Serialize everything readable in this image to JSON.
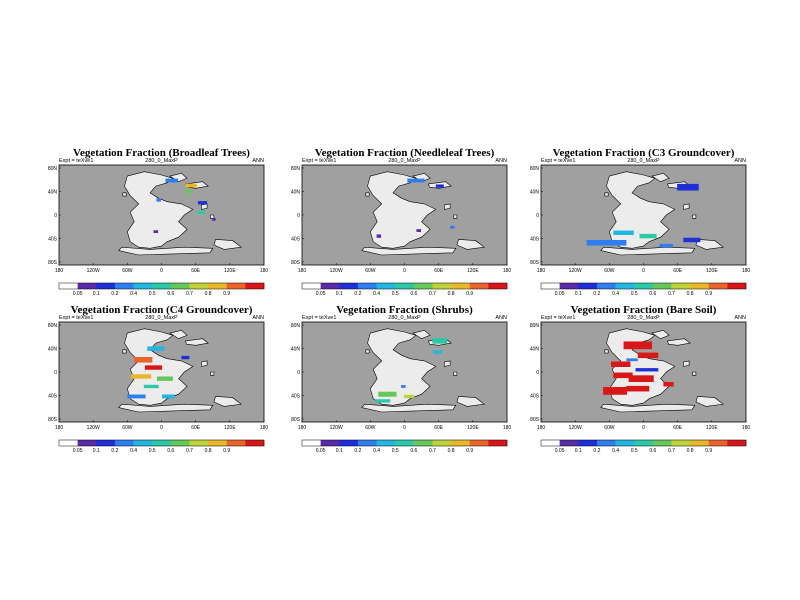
{
  "colors": {
    "ocean": "#a0a0a0",
    "land": "#ececec",
    "frame": "#000000"
  },
  "colorbar": {
    "colors": [
      "#ffffff",
      "#5b2aa8",
      "#1f2fd8",
      "#2f7ef0",
      "#22b6e0",
      "#2cc8a8",
      "#66c85a",
      "#c0d23a",
      "#e8b82a",
      "#e8642a",
      "#d81818"
    ]
  },
  "chart_data": [
    {
      "type": "heatmap",
      "title": "Vegetation Fraction (Broadleaf Trees)",
      "subtitle": "280_0_MaxP",
      "expt": "Expt = teXve1",
      "period": "ANN",
      "lat_ticks": [
        "80N",
        "40N",
        "0",
        "40S",
        "80S"
      ],
      "lon_ticks": [
        "180",
        "120W",
        "60W",
        "0",
        "60E",
        "120E",
        "180"
      ],
      "colorbar_ticks": [
        "0.05",
        "0.1",
        "0.2",
        "0.4",
        "0.5",
        "0.6",
        "0.7",
        "0.8",
        "0.9"
      ],
      "patches": [
        {
          "lon": -5,
          "lat": 27,
          "w": 8,
          "h": 6,
          "c": "#2f7ef0"
        },
        {
          "lon": 18,
          "lat": 62,
          "w": 22,
          "h": 7,
          "c": "#2f7ef0"
        },
        {
          "lon": 52,
          "lat": 53,
          "w": 20,
          "h": 7,
          "c": "#e8b82a"
        },
        {
          "lon": 48,
          "lat": 42,
          "w": 14,
          "h": 6,
          "c": "#66c85a"
        },
        {
          "lon": 72,
          "lat": 22,
          "w": 16,
          "h": 6,
          "c": "#1f2fd8"
        },
        {
          "lon": 70,
          "lat": 5,
          "w": 14,
          "h": 6,
          "c": "#2cc8a8"
        },
        {
          "lon": -10,
          "lat": -30,
          "w": 8,
          "h": 5,
          "c": "#5b2aa8"
        },
        {
          "lon": 92,
          "lat": -8,
          "w": 6,
          "h": 5,
          "c": "#5b2aa8"
        }
      ]
    },
    {
      "type": "heatmap",
      "title": "Vegetation Fraction (Needleleaf Trees)",
      "subtitle": "280_0_MaxP",
      "expt": "Expt = teXve1",
      "period": "ANN",
      "lat_ticks": [
        "80N",
        "40N",
        "0",
        "40S",
        "80S"
      ],
      "lon_ticks": [
        "180",
        "120W",
        "60W",
        "0",
        "60E",
        "120E",
        "180"
      ],
      "colorbar_ticks": [
        "0.05",
        "0.1",
        "0.2",
        "0.4",
        "0.5",
        "0.6",
        "0.7",
        "0.8",
        "0.9"
      ],
      "patches": [
        {
          "lon": 20,
          "lat": 62,
          "w": 30,
          "h": 7,
          "c": "#2f7ef0"
        },
        {
          "lon": 62,
          "lat": 52,
          "w": 14,
          "h": 6,
          "c": "#1f2fd8"
        },
        {
          "lon": -45,
          "lat": -38,
          "w": 8,
          "h": 6,
          "c": "#5b2aa8"
        },
        {
          "lon": 25,
          "lat": -28,
          "w": 8,
          "h": 5,
          "c": "#5b2aa8"
        },
        {
          "lon": 84,
          "lat": -22,
          "w": 8,
          "h": 5,
          "c": "#2f7ef0"
        }
      ]
    },
    {
      "type": "heatmap",
      "title": "Vegetation Fraction (C3 Groundcover)",
      "subtitle": "280_0_MaxP",
      "expt": "Expt = teXve1",
      "period": "ANN",
      "lat_ticks": [
        "80N",
        "40N",
        "0",
        "40S",
        "80S"
      ],
      "lon_ticks": [
        "180",
        "120W",
        "60W",
        "0",
        "60E",
        "120E",
        "180"
      ],
      "colorbar_ticks": [
        "0.05",
        "0.1",
        "0.2",
        "0.4",
        "0.5",
        "0.6",
        "0.7",
        "0.8",
        "0.9"
      ],
      "patches": [
        {
          "lon": 78,
          "lat": 50,
          "w": 38,
          "h": 12,
          "c": "#1f2fd8"
        },
        {
          "lon": -65,
          "lat": -50,
          "w": 70,
          "h": 10,
          "c": "#2f7ef0"
        },
        {
          "lon": -35,
          "lat": -32,
          "w": 36,
          "h": 8,
          "c": "#22b6e0"
        },
        {
          "lon": 8,
          "lat": -38,
          "w": 30,
          "h": 8,
          "c": "#2cc8a8"
        },
        {
          "lon": 40,
          "lat": -55,
          "w": 24,
          "h": 6,
          "c": "#2f7ef0"
        },
        {
          "lon": 85,
          "lat": -45,
          "w": 30,
          "h": 8,
          "c": "#1f2fd8"
        }
      ]
    },
    {
      "type": "heatmap",
      "title": "Vegetation Fraction (C4 Groundcover)",
      "subtitle": "280_0_MaxP",
      "expt": "Expt = teXve1",
      "period": "ANN",
      "lat_ticks": [
        "80N",
        "40N",
        "0",
        "40S",
        "80S"
      ],
      "lon_ticks": [
        "180",
        "120W",
        "60W",
        "0",
        "60E",
        "120E",
        "180"
      ],
      "colorbar_ticks": [
        "0.05",
        "0.1",
        "0.2",
        "0.4",
        "0.5",
        "0.6",
        "0.7",
        "0.8",
        "0.9"
      ],
      "patches": [
        {
          "lon": -10,
          "lat": 42,
          "w": 30,
          "h": 8,
          "c": "#22b6e0"
        },
        {
          "lon": -32,
          "lat": 22,
          "w": 32,
          "h": 10,
          "c": "#e8642a"
        },
        {
          "lon": -14,
          "lat": 8,
          "w": 30,
          "h": 8,
          "c": "#d81818"
        },
        {
          "lon": -36,
          "lat": -8,
          "w": 36,
          "h": 8,
          "c": "#e8b82a"
        },
        {
          "lon": 6,
          "lat": -12,
          "w": 28,
          "h": 8,
          "c": "#66c85a"
        },
        {
          "lon": -18,
          "lat": -26,
          "w": 26,
          "h": 6,
          "c": "#2cc8a8"
        },
        {
          "lon": -44,
          "lat": -44,
          "w": 32,
          "h": 7,
          "c": "#2f7ef0"
        },
        {
          "lon": 12,
          "lat": -44,
          "w": 22,
          "h": 7,
          "c": "#22b6e0"
        },
        {
          "lon": 42,
          "lat": 26,
          "w": 14,
          "h": 6,
          "c": "#1f2fd8"
        }
      ]
    },
    {
      "type": "heatmap",
      "title": "Vegetation Fraction (Shrubs)",
      "subtitle": "280_0_MaxP",
      "expt": "Expt = teXve1",
      "period": "ANN",
      "lat_ticks": [
        "80N",
        "40N",
        "0",
        "40S",
        "80S"
      ],
      "lon_ticks": [
        "180",
        "120W",
        "60W",
        "0",
        "60E",
        "120E",
        "180"
      ],
      "colorbar_ticks": [
        "0.05",
        "0.1",
        "0.2",
        "0.4",
        "0.5",
        "0.6",
        "0.7",
        "0.8",
        "0.9"
      ],
      "patches": [
        {
          "lon": 62,
          "lat": 56,
          "w": 26,
          "h": 10,
          "c": "#2cc8a8"
        },
        {
          "lon": 58,
          "lat": 36,
          "w": 16,
          "h": 6,
          "c": "#22b6e0"
        },
        {
          "lon": -30,
          "lat": -40,
          "w": 32,
          "h": 9,
          "c": "#66c85a"
        },
        {
          "lon": -38,
          "lat": -52,
          "w": 26,
          "h": 6,
          "c": "#2cc8a8"
        },
        {
          "lon": 8,
          "lat": -44,
          "w": 18,
          "h": 6,
          "c": "#c0d23a"
        },
        {
          "lon": -2,
          "lat": -26,
          "w": 8,
          "h": 5,
          "c": "#2f7ef0"
        }
      ]
    },
    {
      "type": "heatmap",
      "title": "Vegetation Fraction (Bare Soil)",
      "subtitle": "280_0_MaxP",
      "expt": "Expt = teXve1",
      "period": "ANN",
      "lat_ticks": [
        "80N",
        "40N",
        "0",
        "40S",
        "80S"
      ],
      "lon_ticks": [
        "180",
        "120W",
        "60W",
        "0",
        "60E",
        "120E",
        "180"
      ],
      "colorbar_ticks": [
        "0.05",
        "0.1",
        "0.2",
        "0.4",
        "0.5",
        "0.6",
        "0.7",
        "0.8",
        "0.9"
      ],
      "patches": [
        {
          "lon": -10,
          "lat": 48,
          "w": 50,
          "h": 14,
          "c": "#d81818"
        },
        {
          "lon": 8,
          "lat": 30,
          "w": 36,
          "h": 10,
          "c": "#d81818"
        },
        {
          "lon": -40,
          "lat": 14,
          "w": 34,
          "h": 10,
          "c": "#d81818"
        },
        {
          "lon": -36,
          "lat": -6,
          "w": 34,
          "h": 10,
          "c": "#d81818"
        },
        {
          "lon": -4,
          "lat": -12,
          "w": 44,
          "h": 12,
          "c": "#d81818"
        },
        {
          "lon": -50,
          "lat": -34,
          "w": 42,
          "h": 14,
          "c": "#d81818"
        },
        {
          "lon": -10,
          "lat": -30,
          "w": 40,
          "h": 10,
          "c": "#d81818"
        },
        {
          "lon": 6,
          "lat": 4,
          "w": 40,
          "h": 6,
          "c": "#1f2fd8"
        },
        {
          "lon": -20,
          "lat": 22,
          "w": 20,
          "h": 5,
          "c": "#2f7ef0"
        },
        {
          "lon": 44,
          "lat": -22,
          "w": 18,
          "h": 8,
          "c": "#d81818"
        }
      ]
    }
  ]
}
